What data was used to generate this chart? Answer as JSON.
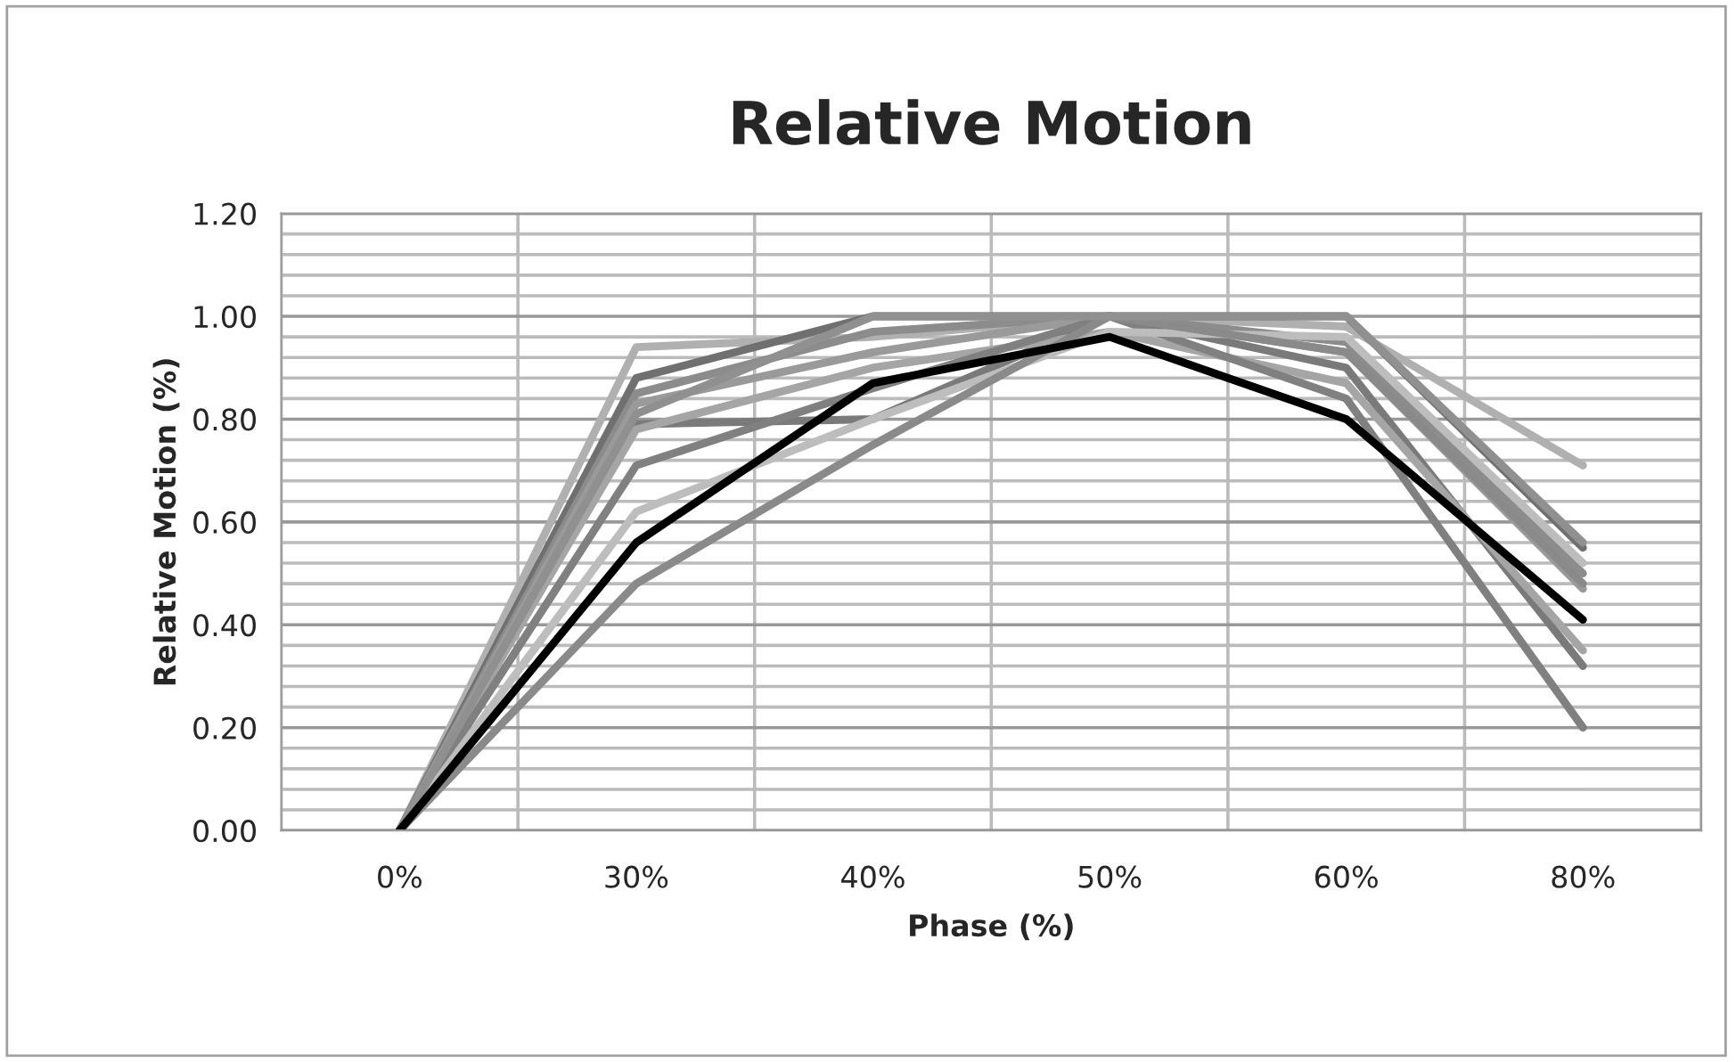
{
  "chart_data": {
    "type": "line",
    "title": "Relative Motion",
    "xlabel": "Phase (%)",
    "ylabel": "Relative Motion (%)",
    "categories": [
      "0%",
      "30%",
      "40%",
      "50%",
      "60%",
      "80%"
    ],
    "series": [
      {
        "color": "#b0b0b0",
        "values": [
          0,
          0.94,
          0.96,
          1.0,
          0.98,
          0.71
        ]
      },
      {
        "color": "#707070",
        "values": [
          0,
          0.88,
          1.0,
          1.0,
          1.0,
          0.55
        ]
      },
      {
        "color": "#8c8c8c",
        "values": [
          0,
          0.85,
          0.97,
          1.0,
          0.95,
          0.5
        ]
      },
      {
        "color": "#9a9a9a",
        "values": [
          0,
          0.83,
          0.93,
          1.0,
          0.93,
          0.47
        ]
      },
      {
        "color": "#7a7a7a",
        "values": [
          0,
          0.79,
          0.8,
          1.0,
          0.9,
          0.32
        ]
      },
      {
        "color": "#a5a5a5",
        "values": [
          0,
          0.78,
          0.9,
          0.97,
          0.87,
          0.35
        ]
      },
      {
        "color": "#808080",
        "values": [
          0,
          0.71,
          0.86,
          1.0,
          0.84,
          0.2
        ]
      },
      {
        "color": "#bdbdbd",
        "values": [
          0,
          0.62,
          0.8,
          0.97,
          0.96,
          0.52
        ]
      },
      {
        "color": "#8a8a8a",
        "values": [
          0,
          0.48,
          0.75,
          1.0,
          0.93,
          0.48
        ]
      },
      {
        "color": "#909090",
        "values": [
          0,
          0.81,
          1.0,
          1.0,
          1.0,
          0.56
        ]
      },
      {
        "color": "#000000",
        "values": [
          0,
          0.56,
          0.87,
          0.96,
          0.8,
          0.41
        ]
      }
    ],
    "ylim": [
      0,
      1.2
    ],
    "yticks": [
      {
        "value": 0,
        "label": "0.00"
      },
      {
        "value": 0.2,
        "label": "0.20"
      },
      {
        "value": 0.4,
        "label": "0.40"
      },
      {
        "value": 0.6,
        "label": "0.60"
      },
      {
        "value": 0.8,
        "label": "0.80"
      },
      {
        "value": 1.0,
        "label": "1.00"
      },
      {
        "value": 1.2,
        "label": "1.20"
      }
    ],
    "grid": true,
    "marker": "none",
    "line_style": "solid"
  }
}
